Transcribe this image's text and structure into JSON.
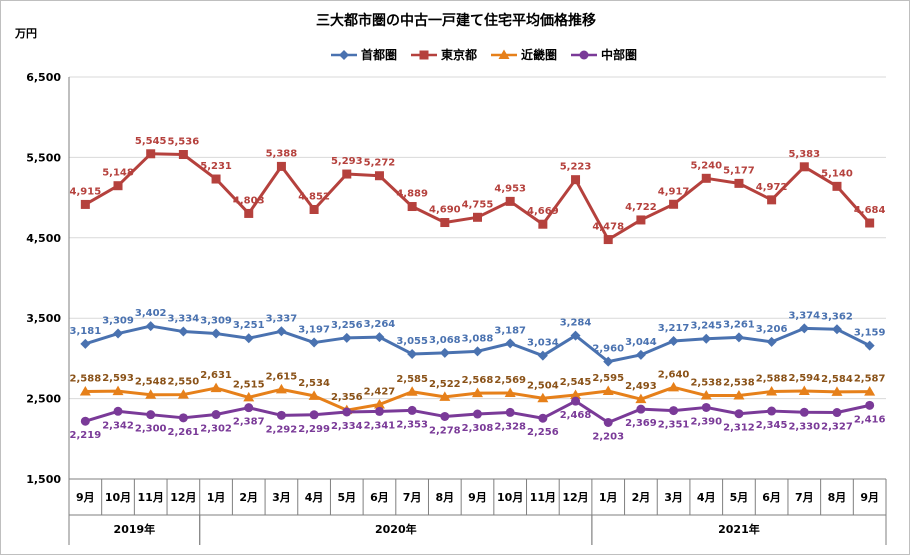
{
  "chart_data": {
    "type": "line",
    "title": "三大都市圏の中古一戸建て住宅平均価格推移",
    "ylabel": "万円",
    "ylim": [
      1500,
      6500
    ],
    "yticks": [
      "1,500",
      "2,500",
      "3,500",
      "4,500",
      "5,500",
      "6,500"
    ],
    "yticks_values": [
      1500,
      2500,
      3500,
      4500,
      5500,
      6500
    ],
    "categories": [
      "9月",
      "10月",
      "11月",
      "12月",
      "1月",
      "2月",
      "3月",
      "4月",
      "5月",
      "6月",
      "7月",
      "8月",
      "9月",
      "10月",
      "11月",
      "12月",
      "1月",
      "2月",
      "3月",
      "4月",
      "5月",
      "6月",
      "7月",
      "8月",
      "9月"
    ],
    "years": [
      {
        "label": "2019年",
        "start": 0,
        "end": 3
      },
      {
        "label": "2020年",
        "start": 4,
        "end": 15
      },
      {
        "label": "2021年",
        "start": 16,
        "end": 24
      }
    ],
    "grid": true,
    "legend_position": "top",
    "series": [
      {
        "name": "首都圏",
        "color": "#4a72b0",
        "marker": "diamond",
        "label_position": "above",
        "values": [
          3181,
          3309,
          3402,
          3334,
          3309,
          3251,
          3337,
          3197,
          3256,
          3264,
          3055,
          3068,
          3088,
          3187,
          3034,
          3284,
          2960,
          3044,
          3217,
          3245,
          3261,
          3206,
          3374,
          3362,
          3159
        ],
        "labels": [
          "3,181",
          "3,309",
          "3,402",
          "3,334",
          "3,309",
          "3,251",
          "3,337",
          "3,197",
          "3,256",
          "3,264",
          "3,055",
          "3,068",
          "3,088",
          "3,187",
          "3,034",
          "3,284",
          "2,960",
          "3,044",
          "3,217",
          "3,245",
          "3,261",
          "3,206",
          "3,374",
          "3,362",
          "3,159"
        ]
      },
      {
        "name": "東京都",
        "color": "#b5413d",
        "marker": "square",
        "label_position": "above",
        "values": [
          4915,
          5148,
          5545,
          5536,
          5231,
          4803,
          5388,
          4852,
          5293,
          5272,
          4889,
          4690,
          4755,
          4953,
          4669,
          5223,
          4478,
          4722,
          4917,
          5240,
          5177,
          4972,
          5383,
          5140,
          4684
        ],
        "labels": [
          "4,915",
          "5,148",
          "5,545",
          "5,536",
          "5,231",
          "4,803",
          "5,388",
          "4,852",
          "5,293",
          "5,272",
          "4,889",
          "4,690",
          "4,755",
          "4,953",
          "4,669",
          "5,223",
          "4,478",
          "4,722",
          "4,917",
          "5,240",
          "5,177",
          "4,972",
          "5,383",
          "5,140",
          "4,684"
        ]
      },
      {
        "name": "近畿圏",
        "color": "#e6801a",
        "marker": "triangle",
        "label_position": "above",
        "label_color": "#8a5218",
        "values": [
          2588,
          2593,
          2548,
          2550,
          2631,
          2515,
          2615,
          2534,
          2356,
          2427,
          2585,
          2522,
          2568,
          2569,
          2504,
          2545,
          2595,
          2493,
          2640,
          2538,
          2538,
          2588,
          2594,
          2584,
          2587
        ],
        "labels": [
          "2,588",
          "2,593",
          "2,548",
          "2,550",
          "2,631",
          "2,515",
          "2,615",
          "2,534",
          "2,356",
          "2,427",
          "2,585",
          "2,522",
          "2,568",
          "2,569",
          "2,504",
          "2,545",
          "2,595",
          "2,493",
          "2,640",
          "2,538",
          "2,538",
          "2,588",
          "2,594",
          "2,584",
          "2,587"
        ]
      },
      {
        "name": "中部圏",
        "color": "#7a3a98",
        "marker": "circle",
        "label_position": "below",
        "values": [
          2219,
          2342,
          2300,
          2261,
          2302,
          2387,
          2292,
          2299,
          2334,
          2341,
          2353,
          2278,
          2308,
          2328,
          2256,
          2468,
          2203,
          2369,
          2351,
          2390,
          2312,
          2345,
          2330,
          2327,
          2416
        ],
        "labels": [
          "2,219",
          "2,342",
          "2,300",
          "2,261",
          "2,302",
          "2,387",
          "2,292",
          "2,299",
          "2,334",
          "2,341",
          "2,353",
          "2,278",
          "2,308",
          "2,328",
          "2,256",
          "2,468",
          "2,203",
          "2,369",
          "2,351",
          "2,390",
          "2,312",
          "2,345",
          "2,330",
          "2,327",
          "2,416"
        ]
      }
    ]
  }
}
